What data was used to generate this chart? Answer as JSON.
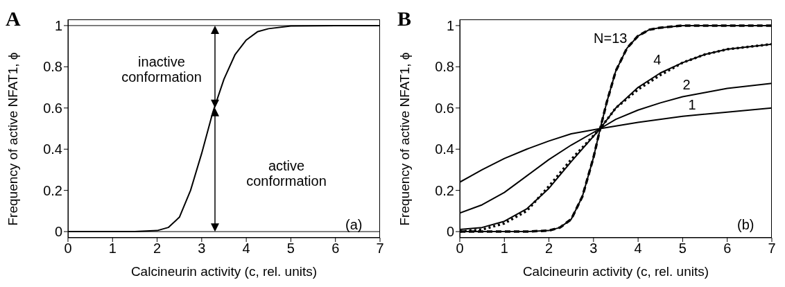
{
  "chart_data": [
    {
      "type": "line",
      "xlabel": "Calcineurin activity (c, rel. units)",
      "ylabel": "Frequency of active NFAT1, ϕ",
      "xlim": [
        0,
        7
      ],
      "ylim": [
        -0.03,
        1.03
      ],
      "xticks": [
        0,
        1,
        2,
        3,
        4,
        5,
        6,
        7
      ],
      "yticks": [
        0,
        0.2,
        0.4,
        0.6,
        0.8,
        1
      ],
      "line_style": "solid",
      "marker": "none",
      "series": [
        {
          "color": "#000000",
          "x": [
            0,
            1,
            1.5,
            2,
            2.25,
            2.5,
            2.75,
            3,
            3.25,
            3.5,
            3.75,
            4,
            4.25,
            4.5,
            5,
            6,
            7
          ],
          "values": [
            0,
            0,
            0,
            0.005,
            0.02,
            0.07,
            0.2,
            0.38,
            0.58,
            0.74,
            0.86,
            0.93,
            0.97,
            0.985,
            0.998,
            1,
            1
          ]
        }
      ],
      "ref_lines": [
        {
          "axis": "y",
          "value": 0,
          "color": "#000000"
        },
        {
          "axis": "y",
          "value": 1,
          "color": "#000000"
        }
      ],
      "annotations": [
        "A",
        "inactive conformation",
        "active conformation",
        "(a)"
      ]
    },
    {
      "type": "line",
      "xlabel": "Calcineurin activity (c, rel. units)",
      "ylabel": "Frequency of active NFAT1, ϕ",
      "xlim": [
        0,
        7
      ],
      "ylim": [
        -0.03,
        1.03
      ],
      "xticks": [
        0,
        1,
        2,
        3,
        4,
        5,
        6,
        7
      ],
      "yticks": [
        0,
        0.2,
        0.4,
        0.6,
        0.8,
        1
      ],
      "line_style": "solid",
      "marker": "none",
      "series": [
        {
          "name": "1",
          "color": "#000000",
          "x": [
            0,
            0.5,
            1,
            1.5,
            2,
            2.5,
            3.15,
            4,
            5,
            6,
            7
          ],
          "values": [
            0.24,
            0.3,
            0.355,
            0.4,
            0.44,
            0.475,
            0.5,
            0.53,
            0.56,
            0.58,
            0.6
          ]
        },
        {
          "name": "2",
          "color": "#000000",
          "x": [
            0,
            0.5,
            1,
            1.5,
            2,
            2.5,
            3.15,
            3.5,
            4,
            4.5,
            5,
            5.5,
            6,
            7
          ],
          "values": [
            0.09,
            0.13,
            0.19,
            0.27,
            0.35,
            0.42,
            0.5,
            0.545,
            0.59,
            0.625,
            0.655,
            0.675,
            0.695,
            0.72
          ]
        },
        {
          "name": "4",
          "color": "#000000",
          "x": [
            0,
            0.5,
            1,
            1.5,
            2,
            2.5,
            3.15,
            3.5,
            4,
            4.5,
            5,
            5.5,
            6,
            7
          ],
          "values": [
            0.01,
            0.02,
            0.05,
            0.11,
            0.21,
            0.34,
            0.5,
            0.6,
            0.7,
            0.77,
            0.82,
            0.86,
            0.885,
            0.91
          ]
        },
        {
          "color": "#000000",
          "line_style": "dotted",
          "x": [
            0,
            0.5,
            1,
            1.5,
            2,
            2.5,
            3.15,
            3.5,
            4,
            4.5,
            5,
            5.5,
            6,
            7
          ],
          "values": [
            0,
            0.01,
            0.04,
            0.1,
            0.22,
            0.35,
            0.5,
            0.6,
            0.69,
            0.76,
            0.82,
            0.86,
            0.885,
            0.91
          ]
        },
        {
          "name": "N=13",
          "color": "#000000",
          "x": [
            0,
            1.5,
            2,
            2.25,
            2.5,
            2.75,
            3,
            3.15,
            3.3,
            3.5,
            3.75,
            4,
            4.25,
            4.5,
            5,
            7
          ],
          "values": [
            0,
            0,
            0.005,
            0.02,
            0.06,
            0.17,
            0.36,
            0.5,
            0.63,
            0.78,
            0.89,
            0.95,
            0.98,
            0.99,
            1,
            1
          ]
        },
        {
          "color": "#000000",
          "line_style": "dashed",
          "x": [
            0,
            1.5,
            2,
            2.25,
            2.5,
            2.75,
            3,
            3.15,
            3.3,
            3.5,
            3.75,
            4,
            4.25,
            4.5,
            5,
            7
          ],
          "values": [
            0,
            0,
            0.005,
            0.02,
            0.06,
            0.17,
            0.36,
            0.5,
            0.63,
            0.78,
            0.89,
            0.95,
            0.98,
            0.99,
            1,
            1
          ]
        }
      ],
      "annotations": [
        "B",
        "(b)"
      ]
    }
  ]
}
